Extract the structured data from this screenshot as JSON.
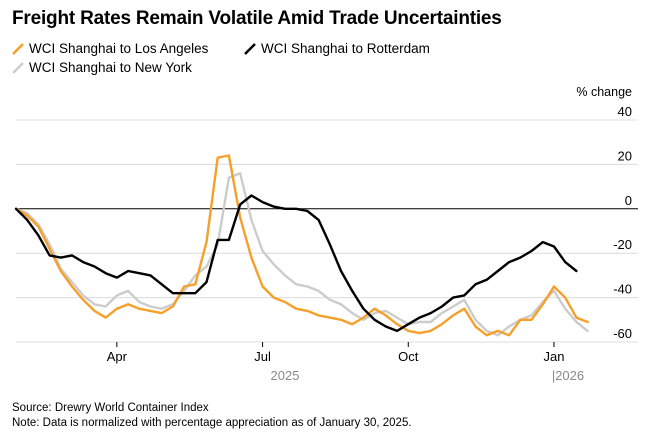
{
  "chart_data": {
    "type": "line",
    "title": "Freight Rates Remain Volatile Amid Trade Uncertainties",
    "ylabel": "% change",
    "ylim": [
      -60,
      40
    ],
    "yticks": [
      40,
      20,
      0,
      -20,
      -40,
      -60
    ],
    "xlim": [
      0,
      53
    ],
    "x_tick_labels": [
      {
        "label": "Apr",
        "week": 9
      },
      {
        "label": "Jul",
        "week": 22
      },
      {
        "label": "Oct",
        "week": 35
      },
      {
        "label": "Jan",
        "week": 48
      }
    ],
    "year_labels": [
      {
        "label": "2025",
        "week": 24
      },
      {
        "label": "|2026",
        "week": 48
      }
    ],
    "series": [
      {
        "name": "WCI Shanghai to Los Angeles",
        "color": "#f5a02a",
        "values": [
          0,
          -3,
          -8,
          -18,
          -28,
          -35,
          -41,
          -46,
          -49,
          -45,
          -43,
          -45,
          -46,
          -47,
          -44,
          -35,
          -34,
          -15,
          23,
          24,
          -4,
          -22,
          -35,
          -40,
          -42,
          -45,
          -46,
          -48,
          -49,
          -50,
          -52,
          -49,
          -45,
          -48,
          -52,
          -55,
          -56,
          -55,
          -52,
          -48,
          -45,
          -53,
          -57,
          -55,
          -57,
          -50,
          -50,
          -43,
          -35,
          -40,
          -49,
          -51
        ]
      },
      {
        "name": "WCI Shanghai to Rotterdam",
        "color": "#000000",
        "values": [
          0,
          -5,
          -12,
          -21,
          -22,
          -21,
          -24,
          -26,
          -29,
          -31,
          -28,
          -29,
          -30,
          -34,
          -38,
          -38,
          -38,
          -33,
          -14,
          -14,
          2,
          6,
          3,
          1,
          0,
          0,
          -1,
          -5,
          -16,
          -28,
          -37,
          -45,
          -50,
          -53,
          -55,
          -52,
          -49,
          -47,
          -44,
          -40,
          -39,
          -34,
          -32,
          -28,
          -24,
          -22,
          -19,
          -15,
          -17,
          -24,
          -28
        ]
      },
      {
        "name": "WCI Shanghai to New York",
        "color": "#cccccc",
        "values": [
          0,
          -2,
          -7,
          -16,
          -27,
          -33,
          -39,
          -43,
          -44,
          -39,
          -37,
          -42,
          -44,
          -45,
          -43,
          -37,
          -30,
          -26,
          -16,
          14,
          16,
          -5,
          -19,
          -25,
          -30,
          -34,
          -35,
          -37,
          -41,
          -43,
          -47,
          -50,
          -47,
          -46,
          -49,
          -52,
          -51,
          -51,
          -47,
          -44,
          -41,
          -50,
          -55,
          -57,
          -53,
          -50,
          -48,
          -42,
          -37,
          -45,
          -51,
          -55
        ]
      }
    ]
  },
  "footer": {
    "source": "Source: Drewry World Container Index",
    "note": "Note: Data is normalized with percentage appreciation as of January 30, 2025."
  }
}
